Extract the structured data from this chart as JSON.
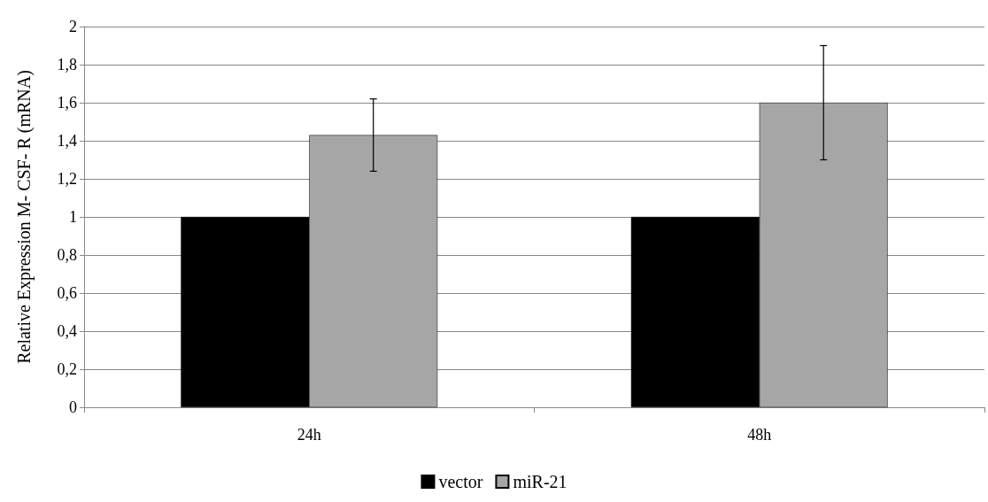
{
  "chart_data": {
    "type": "bar",
    "ylabel": "Relative Expression M- CSF- R (mRNA)",
    "categories": [
      "24h",
      "48h"
    ],
    "series": [
      {
        "name": "vector",
        "color": "#000000",
        "values": [
          1,
          1
        ]
      },
      {
        "name": "miR-21",
        "color": "#a6a6a6",
        "values": [
          1.43,
          1.6
        ],
        "errors": [
          [
            1.24,
            1.62
          ],
          [
            1.3,
            1.9
          ]
        ]
      }
    ],
    "ylim": [
      0,
      2
    ],
    "yticks": [
      0,
      {
        "value": 0.2,
        "label": "0,2"
      },
      {
        "value": 0.4,
        "label": "0,4"
      },
      {
        "value": 0.6,
        "label": "0,6"
      },
      {
        "value": 0.8,
        "label": "0,8"
      },
      1,
      {
        "value": 1.2,
        "label": "1,2"
      },
      {
        "value": 1.4,
        "label": "1,4"
      },
      {
        "value": 1.6,
        "label": "1,6"
      },
      {
        "value": 1.8,
        "label": "1,8"
      },
      2
    ],
    "grid": "y",
    "legend": "bottom"
  }
}
